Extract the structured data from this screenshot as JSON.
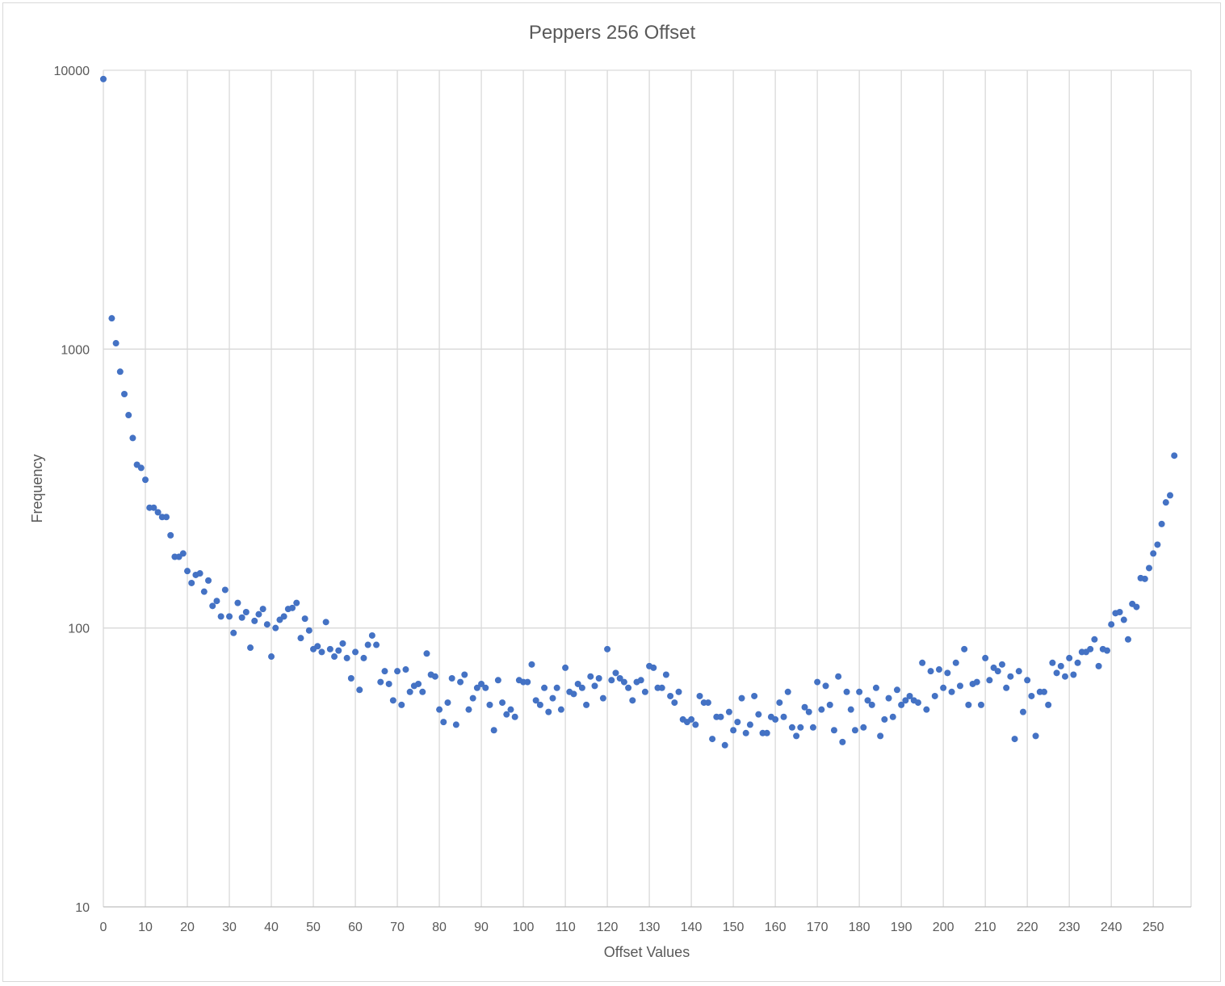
{
  "colors": {
    "series": "#4472c4",
    "grid": "#d9d9d9",
    "text": "#595959"
  },
  "chart_data": {
    "type": "scatter",
    "title": "Peppers 256 Offset",
    "xlabel": "Offset Values",
    "ylabel": "Frequency",
    "xlim": [
      0,
      259
    ],
    "ylim": [
      10,
      10000
    ],
    "y_scale": "log",
    "grid": "vertical and horizontal major gridlines",
    "legend": "none",
    "x_ticks": [
      "0",
      "10",
      "20",
      "30",
      "40",
      "50",
      "60",
      "70",
      "80",
      "90",
      "100",
      "110",
      "120",
      "130",
      "140",
      "150",
      "160",
      "170",
      "180",
      "190",
      "200",
      "210",
      "220",
      "230",
      "240",
      "250"
    ],
    "y_ticks": [
      "10",
      "100",
      "1000",
      "10000"
    ],
    "x": [
      0,
      2,
      3,
      4,
      5,
      6,
      7,
      8,
      9,
      10,
      11,
      12,
      13,
      14,
      15,
      16,
      17,
      18,
      19,
      20,
      21,
      22,
      23,
      24,
      25,
      26,
      27,
      28,
      29,
      30,
      31,
      32,
      33,
      34,
      35,
      36,
      37,
      38,
      39,
      40,
      41,
      42,
      43,
      44,
      45,
      46,
      47,
      48,
      49,
      50,
      51,
      52,
      53,
      54,
      55,
      56,
      57,
      58,
      59,
      60,
      61,
      62,
      63,
      64,
      65,
      66,
      67,
      68,
      69,
      70,
      71,
      72,
      73,
      74,
      75,
      76,
      77,
      78,
      79,
      80,
      81,
      82,
      83,
      84,
      85,
      86,
      87,
      88,
      89,
      90,
      91,
      92,
      93,
      94,
      95,
      96,
      97,
      98,
      99,
      100,
      101,
      102,
      103,
      104,
      105,
      106,
      107,
      108,
      109,
      110,
      111,
      112,
      113,
      114,
      115,
      116,
      117,
      118,
      119,
      120,
      121,
      122,
      123,
      124,
      125,
      126,
      127,
      128,
      129,
      130,
      131,
      132,
      133,
      134,
      135,
      136,
      137,
      138,
      139,
      140,
      141,
      142,
      143,
      144,
      145,
      146,
      147,
      148,
      149,
      150,
      151,
      152,
      153,
      154,
      155,
      156,
      157,
      158,
      159,
      160,
      161,
      162,
      163,
      164,
      165,
      166,
      167,
      168,
      169,
      170,
      171,
      172,
      173,
      174,
      175,
      176,
      177,
      178,
      179,
      180,
      181,
      182,
      183,
      184,
      185,
      186,
      187,
      188,
      189,
      190,
      191,
      192,
      193,
      194,
      195,
      196,
      197,
      198,
      199,
      200,
      201,
      202,
      203,
      204,
      205,
      206,
      207,
      208,
      209,
      210,
      211,
      212,
      213,
      214,
      215,
      216,
      217,
      218,
      219,
      220,
      221,
      222,
      223,
      224,
      225,
      226,
      227,
      228,
      229,
      230,
      231,
      232,
      233,
      234,
      235,
      236,
      237,
      238,
      239,
      240,
      241,
      242,
      243,
      244,
      245,
      246,
      247,
      248,
      249,
      250,
      251,
      252,
      253,
      254,
      255
    ],
    "y": [
      9300,
      1290,
      1050,
      830,
      690,
      580,
      480,
      385,
      375,
      340,
      270,
      270,
      260,
      250,
      250,
      215,
      180,
      180,
      185,
      160,
      145,
      155,
      157,
      135,
      148,
      120,
      125,
      110,
      137,
      110,
      96,
      123,
      109,
      114,
      85,
      106,
      112,
      117,
      103,
      79,
      100,
      107,
      110,
      117,
      118,
      123,
      92,
      108,
      98,
      84,
      86,
      82,
      105,
      84,
      79,
      83,
      88,
      78,
      66,
      82,
      60,
      78,
      87,
      94,
      87,
      64,
      70,
      63,
      55,
      70,
      53,
      71,
      59,
      62,
      63,
      59,
      81,
      68,
      67,
      51,
      46,
      54,
      66,
      45,
      64,
      68,
      51,
      56,
      61,
      63,
      61,
      53,
      43,
      65,
      54,
      49,
      51,
      48,
      65,
      64,
      64,
      74,
      55,
      53,
      61,
      50,
      56,
      61,
      51,
      72,
      59,
      58,
      63,
      61,
      53,
      67,
      62,
      66,
      56,
      84,
      65,
      69,
      66,
      64,
      61,
      55,
      64,
      65,
      59,
      73,
      72,
      61,
      61,
      68,
      57,
      54,
      59,
      47,
      46,
      47,
      45,
      57,
      54,
      54,
      40,
      48,
      48,
      38,
      50,
      43,
      46,
      56,
      42,
      45,
      57,
      49,
      42,
      42,
      48,
      47,
      54,
      48,
      59,
      44,
      41,
      44,
      52,
      50,
      44,
      64,
      51,
      62,
      53,
      43,
      67,
      39,
      59,
      51,
      43,
      59,
      44,
      55,
      53,
      61,
      41,
      47,
      56,
      48,
      60,
      53,
      55,
      57,
      55,
      54,
      75,
      51,
      70,
      57,
      71,
      61,
      69,
      59,
      75,
      62,
      84,
      53,
      63,
      64,
      53,
      78,
      65,
      72,
      70,
      74,
      61,
      67,
      40,
      70,
      50,
      65,
      57,
      41,
      59,
      59,
      53,
      75,
      69,
      73,
      67,
      78,
      68,
      75,
      82,
      82,
      84,
      91,
      73,
      84,
      83,
      103,
      113,
      114,
      107,
      91,
      122,
      119,
      151,
      150,
      164,
      185,
      199,
      236,
      282,
      299,
      415
    ]
  }
}
